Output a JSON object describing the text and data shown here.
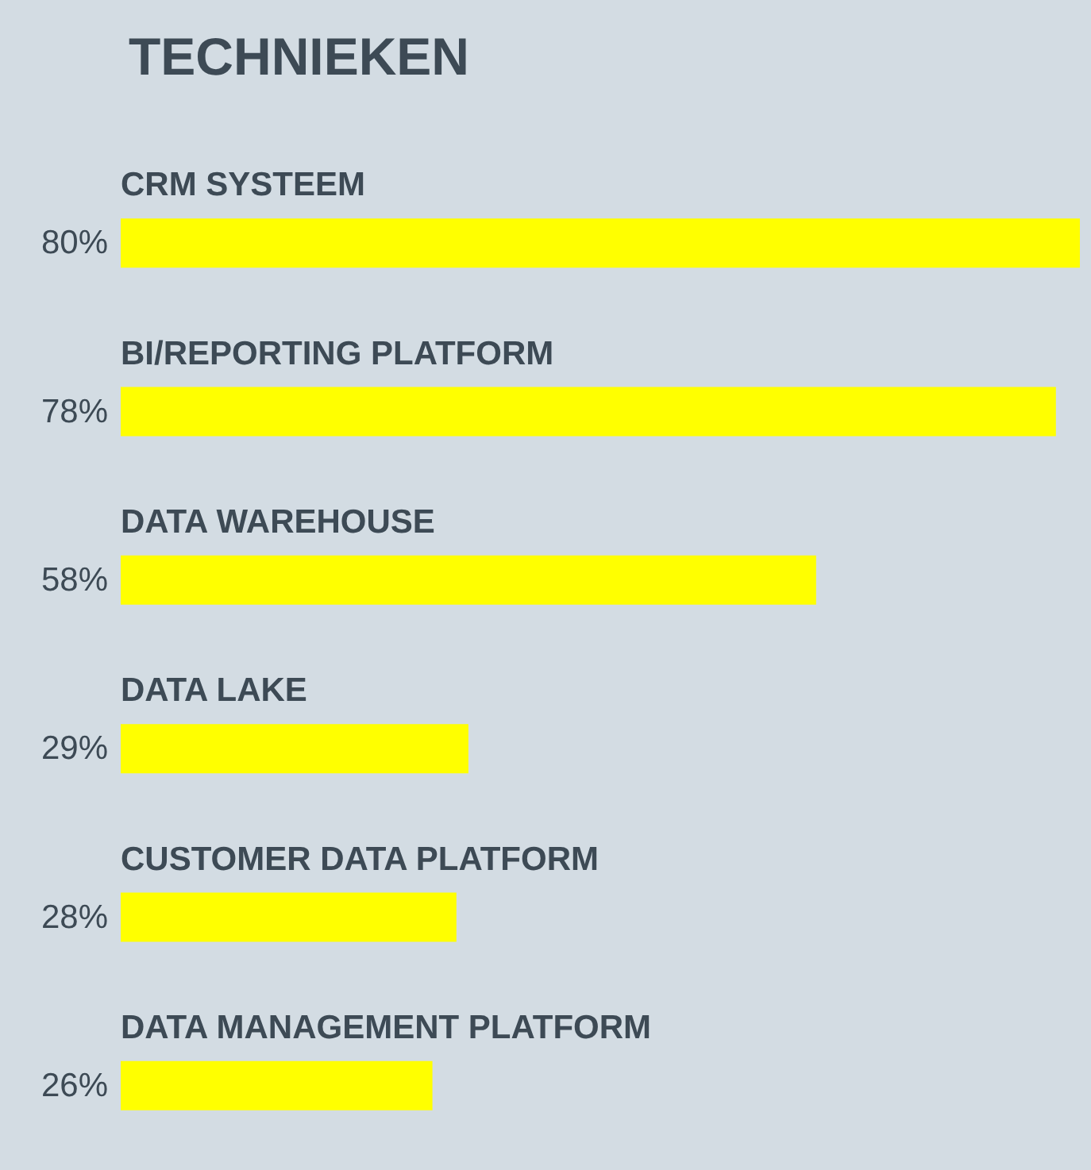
{
  "chart_data": {
    "type": "bar",
    "orientation": "horizontal",
    "title": "TECHNIEKEN",
    "categories": [
      "CRM SYSTEEM",
      "BI/REPORTING PLATFORM",
      "DATA WAREHOUSE",
      "DATA LAKE",
      "CUSTOMER DATA PLATFORM",
      "DATA MANAGEMENT PLATFORM"
    ],
    "values": [
      80,
      78,
      58,
      29,
      28,
      26
    ],
    "value_labels": [
      "80%",
      "78%",
      "58%",
      "29%",
      "28%",
      "26%"
    ],
    "color": "#ffff00"
  }
}
